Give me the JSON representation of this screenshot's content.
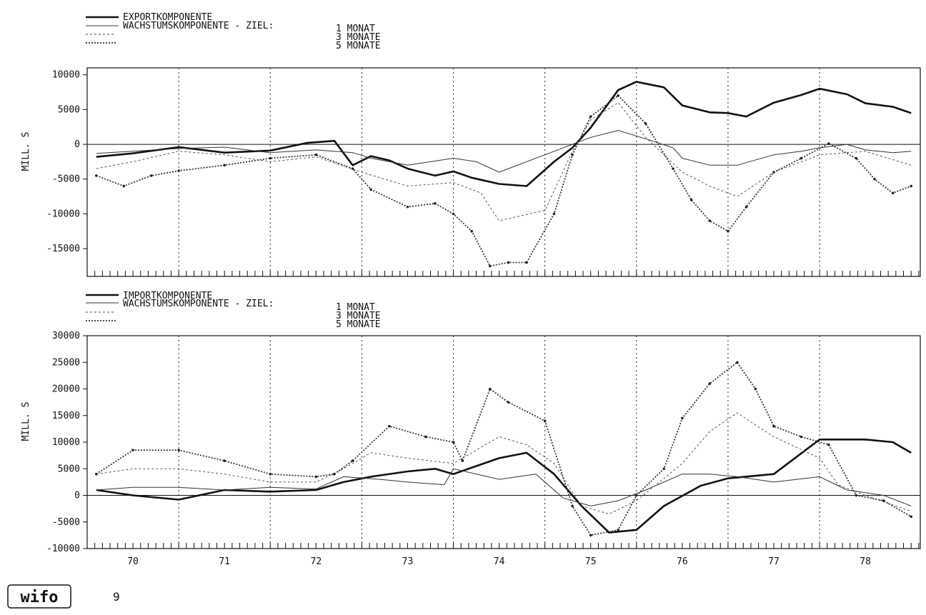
{
  "page_number": "9",
  "logo_text": "wifo",
  "x_tick_labels": [
    "70",
    "71",
    "72",
    "73",
    "74",
    "75",
    "76",
    "77",
    "78"
  ],
  "colors": {
    "ink": "#111111",
    "grid": "#222222",
    "series_grey": "#555555"
  },
  "chart_data": [
    {
      "type": "line",
      "ylabel": "MILL. S",
      "ylim": [
        -19000,
        11000
      ],
      "yticks": [
        10000,
        5000,
        0,
        -5000,
        -10000,
        -15000
      ],
      "ytick_labels": [
        "10000",
        "5000",
        "0",
        "-5000",
        "-10000",
        "-15000"
      ],
      "legend": {
        "entries": [
          "EXPORTKOMPONENTE",
          "WACHSTUMSKOMPONENTE - ZIEL:",
          "",
          ""
        ],
        "targets": [
          "1 MONAT",
          "3 MONATE",
          "5 MONATE"
        ]
      },
      "series": [
        {
          "style": "thick",
          "points": [
            [
              69.6,
              -1800
            ],
            [
              70,
              -1300
            ],
            [
              70.5,
              -400
            ],
            [
              71,
              -1200
            ],
            [
              71.5,
              -900
            ],
            [
              71.9,
              200
            ],
            [
              72.2,
              500
            ],
            [
              72.4,
              -3000
            ],
            [
              72.6,
              -1700
            ],
            [
              72.8,
              -2300
            ],
            [
              73,
              -3500
            ],
            [
              73.3,
              -4500
            ],
            [
              73.5,
              -3900
            ],
            [
              73.7,
              -4800
            ],
            [
              74,
              -5700
            ],
            [
              74.3,
              -6000
            ],
            [
              74.6,
              -2500
            ],
            [
              74.8,
              -500
            ],
            [
              75,
              2400
            ],
            [
              75.3,
              7800
            ],
            [
              75.5,
              9000
            ],
            [
              75.8,
              8200
            ],
            [
              76,
              5600
            ],
            [
              76.3,
              4600
            ],
            [
              76.5,
              4500
            ],
            [
              76.7,
              4000
            ],
            [
              77,
              6000
            ],
            [
              77.3,
              7100
            ],
            [
              77.5,
              8000
            ],
            [
              77.8,
              7200
            ],
            [
              78,
              5900
            ],
            [
              78.3,
              5400
            ],
            [
              78.5,
              4500
            ]
          ]
        },
        {
          "style": "thin",
          "points": [
            [
              69.6,
              -1300
            ],
            [
              70,
              -1000
            ],
            [
              70.5,
              -600
            ],
            [
              71,
              -400
            ],
            [
              71.5,
              -1200
            ],
            [
              72,
              -800
            ],
            [
              72.4,
              -1200
            ],
            [
              72.6,
              -2000
            ],
            [
              73,
              -3000
            ],
            [
              73.5,
              -2000
            ],
            [
              73.75,
              -2500
            ],
            [
              74,
              -4000
            ],
            [
              74.5,
              -1500
            ],
            [
              74.8,
              0
            ],
            [
              75,
              1000
            ],
            [
              75.3,
              2000
            ],
            [
              75.6,
              800
            ],
            [
              75.9,
              -500
            ],
            [
              76,
              -2000
            ],
            [
              76.3,
              -3000
            ],
            [
              76.6,
              -3000
            ],
            [
              77,
              -1500
            ],
            [
              77.3,
              -1000
            ],
            [
              77.5,
              -500
            ],
            [
              77.8,
              0
            ],
            [
              78,
              -800
            ],
            [
              78.3,
              -1200
            ],
            [
              78.5,
              -1000
            ]
          ]
        },
        {
          "style": "dash",
          "points": [
            [
              69.6,
              -3500
            ],
            [
              70,
              -2500
            ],
            [
              70.5,
              -1000
            ],
            [
              71,
              -1500
            ],
            [
              71.5,
              -2500
            ],
            [
              72,
              -1800
            ],
            [
              72.5,
              -4000
            ],
            [
              73,
              -6000
            ],
            [
              73.5,
              -5500
            ],
            [
              73.8,
              -7000
            ],
            [
              74,
              -11000
            ],
            [
              74.5,
              -9500
            ],
            [
              74.8,
              -1000
            ],
            [
              75,
              3500
            ],
            [
              75.3,
              6000
            ],
            [
              75.6,
              1000
            ],
            [
              76,
              -4000
            ],
            [
              76.3,
              -6000
            ],
            [
              76.6,
              -7500
            ],
            [
              77,
              -4000
            ],
            [
              77.5,
              -1500
            ],
            [
              78,
              -1000
            ],
            [
              78.5,
              -3000
            ]
          ]
        },
        {
          "style": "dot",
          "points": [
            [
              69.6,
              -4500
            ],
            [
              69.9,
              -6000
            ],
            [
              70.2,
              -4500
            ],
            [
              70.5,
              -3800
            ],
            [
              71,
              -3000
            ],
            [
              71.5,
              -2000
            ],
            [
              72,
              -1500
            ],
            [
              72.4,
              -3500
            ],
            [
              72.6,
              -6500
            ],
            [
              73,
              -9000
            ],
            [
              73.3,
              -8500
            ],
            [
              73.5,
              -10000
            ],
            [
              73.7,
              -12500
            ],
            [
              73.9,
              -17500
            ],
            [
              74.1,
              -17000
            ],
            [
              74.3,
              -17000
            ],
            [
              74.6,
              -10000
            ],
            [
              74.8,
              -1500
            ],
            [
              75,
              4000
            ],
            [
              75.3,
              7000
            ],
            [
              75.6,
              3000
            ],
            [
              75.9,
              -3500
            ],
            [
              76.1,
              -8000
            ],
            [
              76.3,
              -11000
            ],
            [
              76.5,
              -12500
            ],
            [
              76.7,
              -9000
            ],
            [
              77,
              -4000
            ],
            [
              77.3,
              -2000
            ],
            [
              77.6,
              100
            ],
            [
              77.9,
              -2000
            ],
            [
              78.1,
              -5000
            ],
            [
              78.3,
              -7000
            ],
            [
              78.5,
              -6000
            ]
          ]
        }
      ]
    },
    {
      "type": "line",
      "ylabel": "MILL. S",
      "ylim": [
        -10000,
        30000
      ],
      "yticks": [
        30000,
        25000,
        20000,
        15000,
        10000,
        5000,
        0,
        -5000,
        -10000
      ],
      "ytick_labels": [
        "30000",
        "25000",
        "20000",
        "15000",
        "10000",
        "5000",
        "0",
        "-5000",
        "-10000"
      ],
      "legend": {
        "entries": [
          "IMPORTKOMPONENTE",
          "WACHSTUMSKOMPONENTE - ZIEL:",
          "",
          ""
        ],
        "targets": [
          "1 MONAT",
          "3 MONATE",
          "5 MONATE"
        ]
      },
      "series": [
        {
          "style": "thick",
          "points": [
            [
              69.6,
              1000
            ],
            [
              70,
              0
            ],
            [
              70.5,
              -800
            ],
            [
              71,
              1000
            ],
            [
              71.5,
              700
            ],
            [
              72,
              1000
            ],
            [
              72.3,
              2500
            ],
            [
              72.6,
              3500
            ],
            [
              73,
              4500
            ],
            [
              73.3,
              5000
            ],
            [
              73.5,
              4000
            ],
            [
              74,
              7000
            ],
            [
              74.3,
              8000
            ],
            [
              74.6,
              4000
            ],
            [
              74.9,
              -2000
            ],
            [
              75.2,
              -7000
            ],
            [
              75.5,
              -6500
            ],
            [
              75.8,
              -2000
            ],
            [
              76.2,
              1800
            ],
            [
              76.5,
              3200
            ],
            [
              77,
              4000
            ],
            [
              77.5,
              10500
            ],
            [
              78,
              10500
            ],
            [
              78.3,
              10000
            ],
            [
              78.5,
              8000
            ]
          ]
        },
        {
          "style": "thin",
          "points": [
            [
              69.6,
              1000
            ],
            [
              70,
              1500
            ],
            [
              70.5,
              1500
            ],
            [
              71,
              1000
            ],
            [
              71.5,
              1500
            ],
            [
              72,
              1200
            ],
            [
              72.3,
              3500
            ],
            [
              72.7,
              3000
            ],
            [
              73,
              2500
            ],
            [
              73.4,
              2000
            ],
            [
              73.5,
              5000
            ],
            [
              74,
              3000
            ],
            [
              74.4,
              4000
            ],
            [
              74.7,
              -500
            ],
            [
              75,
              -2000
            ],
            [
              75.3,
              -1000
            ],
            [
              75.6,
              1000
            ],
            [
              76,
              4000
            ],
            [
              76.3,
              4000
            ],
            [
              76.6,
              3500
            ],
            [
              77,
              2500
            ],
            [
              77.5,
              3500
            ],
            [
              77.8,
              1000
            ],
            [
              78.2,
              0
            ],
            [
              78.5,
              -2000
            ]
          ]
        },
        {
          "style": "dash",
          "points": [
            [
              69.6,
              4000
            ],
            [
              70,
              5000
            ],
            [
              70.5,
              5000
            ],
            [
              71,
              4000
            ],
            [
              71.5,
              2500
            ],
            [
              72,
              2500
            ],
            [
              72.3,
              5000
            ],
            [
              72.6,
              8000
            ],
            [
              73,
              7000
            ],
            [
              73.5,
              6000
            ],
            [
              74,
              11000
            ],
            [
              74.3,
              9500
            ],
            [
              74.6,
              6000
            ],
            [
              74.9,
              -2000
            ],
            [
              75.2,
              -3500
            ],
            [
              75.5,
              -1000
            ],
            [
              76,
              6000
            ],
            [
              76.3,
              12000
            ],
            [
              76.6,
              15500
            ],
            [
              77,
              11000
            ],
            [
              77.5,
              7000
            ],
            [
              77.7,
              2000
            ],
            [
              78,
              0
            ],
            [
              78.5,
              -3000
            ]
          ]
        },
        {
          "style": "dot",
          "points": [
            [
              69.6,
              4000
            ],
            [
              70,
              8500
            ],
            [
              70.5,
              8500
            ],
            [
              71,
              6500
            ],
            [
              71.5,
              4000
            ],
            [
              72,
              3500
            ],
            [
              72.2,
              4000
            ],
            [
              72.4,
              6500
            ],
            [
              72.8,
              13000
            ],
            [
              73.2,
              11000
            ],
            [
              73.5,
              10000
            ],
            [
              73.6,
              6500
            ],
            [
              73.9,
              20000
            ],
            [
              74.1,
              17500
            ],
            [
              74.5,
              14000
            ],
            [
              74.8,
              -2000
            ],
            [
              75,
              -7500
            ],
            [
              75.3,
              -6500
            ],
            [
              75.5,
              0
            ],
            [
              75.8,
              5000
            ],
            [
              76,
              14500
            ],
            [
              76.3,
              21000
            ],
            [
              76.6,
              25000
            ],
            [
              76.8,
              20000
            ],
            [
              77,
              13000
            ],
            [
              77.3,
              11000
            ],
            [
              77.6,
              9500
            ],
            [
              77.9,
              0
            ],
            [
              78.2,
              -1000
            ],
            [
              78.5,
              -4000
            ]
          ]
        }
      ]
    }
  ]
}
